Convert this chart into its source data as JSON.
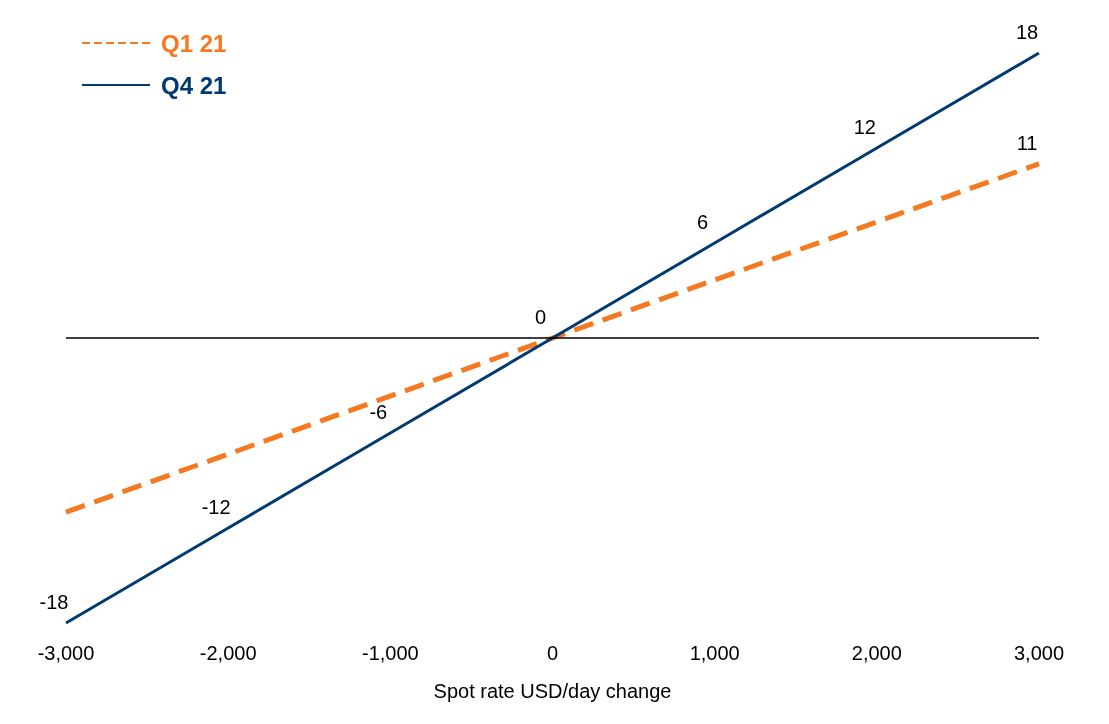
{
  "chart_data": {
    "type": "line",
    "xlabel": "Spot rate USD/day change",
    "xlim": [
      -3000,
      3000
    ],
    "xticks": [
      {
        "value": -3000,
        "label": "-3,000"
      },
      {
        "value": -2000,
        "label": "-2,000"
      },
      {
        "value": -1000,
        "label": "-1,000"
      },
      0,
      {
        "value": 1000,
        "label": "1,000"
      },
      {
        "value": 2000,
        "label": "2,000"
      },
      {
        "value": 3000,
        "label": "3,000"
      }
    ],
    "tick_labels": "x",
    "grid": false,
    "legend": "top left",
    "marker": "none",
    "ref_lines": [
      {
        "axis": "y",
        "value": 0,
        "color": "#000000"
      }
    ],
    "series": [
      {
        "name": "Q1 21",
        "color": "#f47920",
        "line_style": "dashed",
        "x": [
          -3000,
          3000
        ],
        "values": [
          -11,
          11
        ],
        "value_labels": [
          null,
          "11"
        ]
      },
      {
        "name": "Q4 21",
        "color": "#003a70",
        "line_style": "solid",
        "x": [
          -3000,
          -2000,
          -1000,
          0,
          1000,
          2000,
          3000
        ],
        "values": [
          -18,
          -12,
          -6,
          0,
          6,
          12,
          18
        ],
        "value_labels": [
          "-18",
          "-12",
          "-6",
          "0",
          "6",
          "12",
          "18"
        ]
      }
    ]
  }
}
